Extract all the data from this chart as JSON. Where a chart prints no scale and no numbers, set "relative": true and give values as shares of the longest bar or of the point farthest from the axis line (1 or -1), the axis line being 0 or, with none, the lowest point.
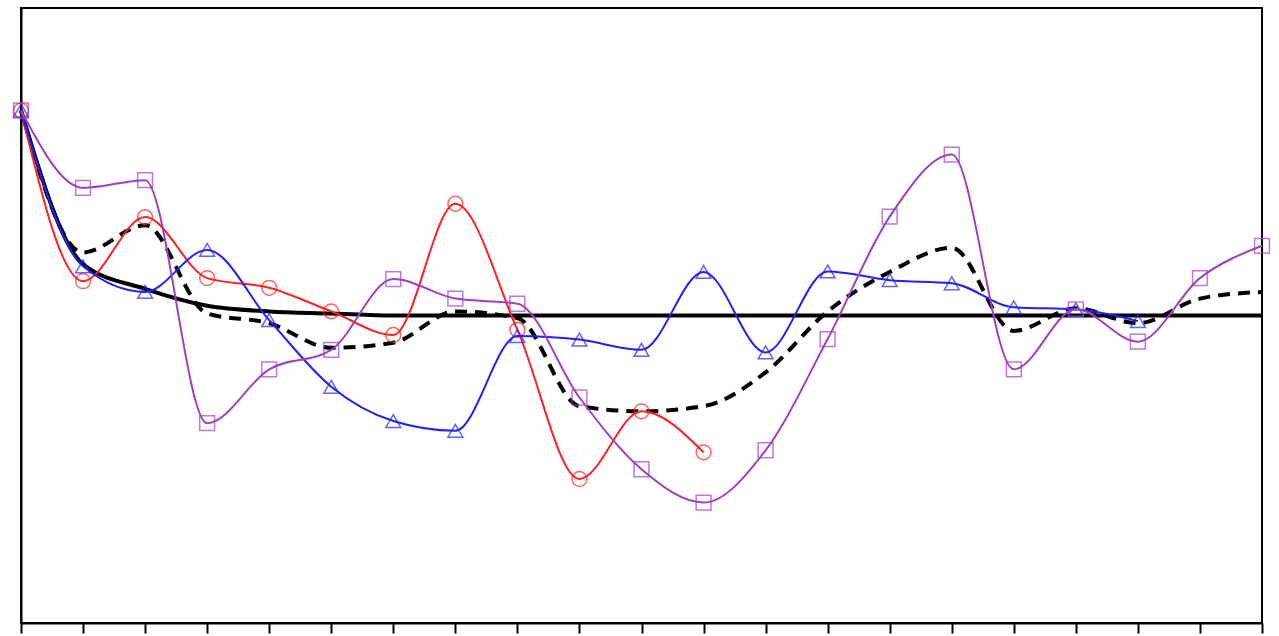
{
  "chart_data": {
    "type": "line",
    "relative": true,
    "tick_labels": false,
    "grid": false,
    "categories": [
      null,
      null,
      null,
      null,
      null,
      null,
      null,
      null,
      null,
      null,
      null,
      null,
      null,
      null,
      null,
      null,
      null,
      null,
      null,
      null,
      null
    ],
    "series": [
      {
        "color": "#000000",
        "marker": "none",
        "line_style": "solid",
        "values": [
          1.0,
          0.7,
          0.652,
          0.619,
          0.608,
          0.604,
          0.6,
          0.6,
          0.6,
          0.6,
          0.6,
          0.6,
          0.6,
          0.6,
          0.6,
          0.6,
          0.6,
          0.6,
          0.6,
          0.6,
          0.6
        ]
      },
      {
        "color": "#000000",
        "marker": "none",
        "line_style": "dashed",
        "values": [
          1.0,
          0.723,
          0.776,
          0.604,
          0.585,
          0.537,
          0.547,
          0.608,
          0.595,
          0.423,
          0.413,
          0.423,
          0.489,
          0.608,
          0.685,
          0.732,
          0.57,
          0.614,
          0.585,
          0.633,
          0.646
        ]
      },
      {
        "color": "#ff2020",
        "marker": "circle",
        "line_style": "solid",
        "values": [
          1.0,
          0.667,
          0.792,
          0.673,
          0.654,
          0.608,
          0.562,
          0.818,
          0.572,
          0.281,
          0.413,
          0.333,
          null,
          null,
          null,
          null,
          null,
          null,
          null,
          null,
          null
        ]
      },
      {
        "color": "#2020ff",
        "marker": "triangle",
        "line_style": "solid",
        "values": [
          1.0,
          0.696,
          0.646,
          0.728,
          0.591,
          0.461,
          0.394,
          0.375,
          0.56,
          0.553,
          0.533,
          0.685,
          0.528,
          0.686,
          0.669,
          0.663,
          0.616,
          0.612,
          0.589,
          null,
          null
        ]
      },
      {
        "color": "#a040c0",
        "marker": "square",
        "line_style": "solid",
        "values": [
          1.0,
          0.849,
          0.864,
          0.39,
          0.495,
          0.533,
          0.671,
          0.633,
          0.623,
          0.44,
          0.3,
          0.235,
          0.337,
          0.554,
          0.793,
          0.914,
          0.495,
          0.612,
          0.549,
          0.673,
          0.736
        ]
      }
    ]
  }
}
